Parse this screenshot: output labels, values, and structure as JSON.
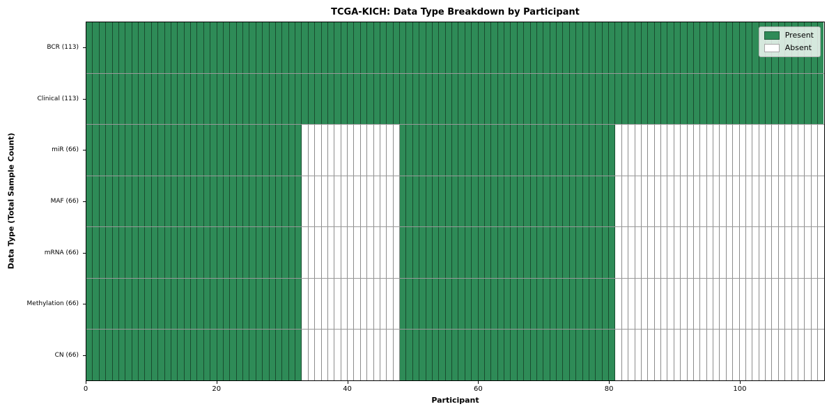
{
  "chart_data": {
    "type": "heatmap",
    "title": "TCGA-KICH: Data Type Breakdown by Participant",
    "xlabel": "Participant",
    "ylabel": "Data Type (Total Sample Count)",
    "n_participants": 113,
    "x_ticks": [
      0,
      20,
      40,
      60,
      80,
      100
    ],
    "xlim": [
      0,
      113
    ],
    "grid": false,
    "legend_position": "upper right",
    "legend": [
      {
        "label": "Present",
        "color": "#2e8b57"
      },
      {
        "label": "Absent",
        "color": "#ffffff"
      }
    ],
    "colors": {
      "present": "#2e8b57",
      "absent": "#ffffff",
      "cell_edge": "rgba(0,0,0,0.45)",
      "row_divider": "rgba(0,0,0,0.40)"
    },
    "rows": [
      {
        "label": "BCR (113)",
        "name": "BCR",
        "total": 113,
        "present_runs": [
          [
            0,
            113
          ]
        ]
      },
      {
        "label": "Clinical (113)",
        "name": "Clinical",
        "total": 113,
        "present_runs": [
          [
            0,
            113
          ]
        ]
      },
      {
        "label": "miR (66)",
        "name": "miR",
        "total": 66,
        "present_runs": [
          [
            0,
            33
          ],
          [
            48,
            81
          ]
        ]
      },
      {
        "label": "MAF (66)",
        "name": "MAF",
        "total": 66,
        "present_runs": [
          [
            0,
            33
          ],
          [
            48,
            81
          ]
        ]
      },
      {
        "label": "mRNA (66)",
        "name": "mRNA",
        "total": 66,
        "present_runs": [
          [
            0,
            33
          ],
          [
            48,
            81
          ]
        ]
      },
      {
        "label": "Methylation (66)",
        "name": "Methylation",
        "total": 66,
        "present_runs": [
          [
            0,
            33
          ],
          [
            48,
            81
          ]
        ]
      },
      {
        "label": "CN (66)",
        "name": "CN",
        "total": 66,
        "present_runs": [
          [
            0,
            33
          ],
          [
            48,
            81
          ]
        ]
      }
    ]
  }
}
